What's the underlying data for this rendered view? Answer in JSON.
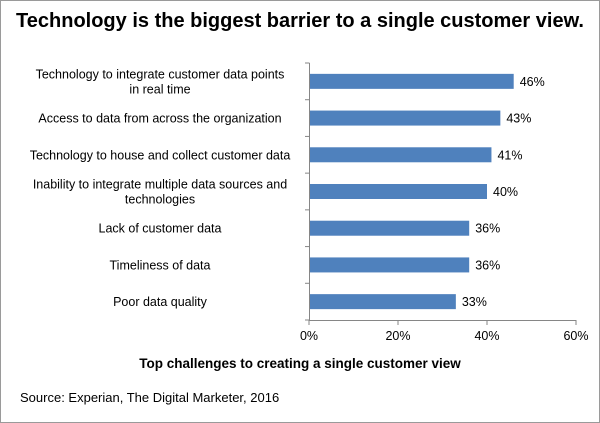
{
  "chart_data": {
    "type": "bar",
    "orientation": "horizontal",
    "title": "Technology is the biggest barrier to a single customer view.",
    "xlabel": "Top challenges to creating a single customer view",
    "ylabel": "",
    "source": "Source: Experian, The Digital Marketer, 2016",
    "categories": [
      [
        "Technology to integrate customer data points",
        "in real time"
      ],
      [
        "Access to data from across the organization"
      ],
      [
        "Technology to house and collect customer data"
      ],
      [
        "Inability to integrate multiple data sources and",
        "technologies"
      ],
      [
        "Lack of customer data"
      ],
      [
        "Timeliness of data"
      ],
      [
        "Poor data quality"
      ]
    ],
    "values": [
      46,
      43,
      41,
      40,
      36,
      36,
      33
    ],
    "value_labels": [
      "46%",
      "43%",
      "41%",
      "40%",
      "36%",
      "36%",
      "33%"
    ],
    "xlim": [
      0,
      60
    ],
    "ticks": [
      0,
      20,
      40,
      60
    ],
    "tick_labels": [
      "0%",
      "20%",
      "40%",
      "60%"
    ],
    "bar_color": "#4f81bd",
    "grid": false,
    "legend": "none"
  }
}
